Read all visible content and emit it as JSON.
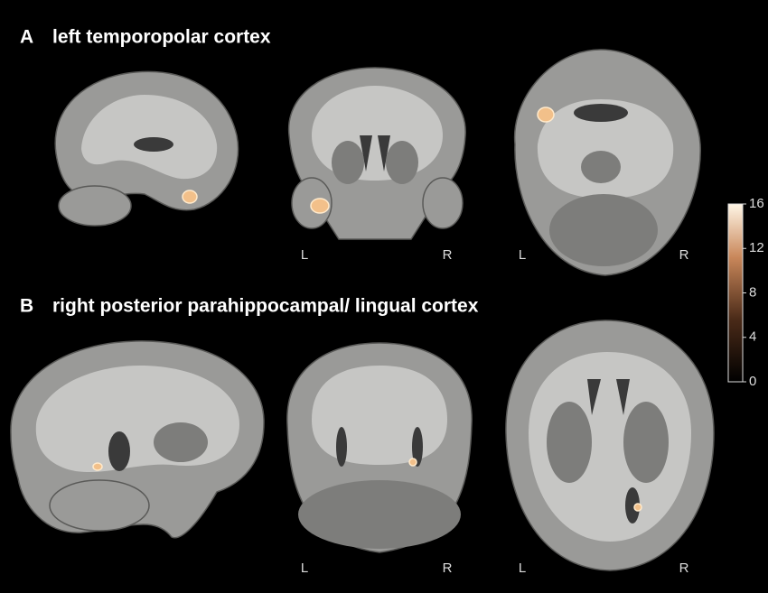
{
  "panels": [
    {
      "label": "A",
      "title": "left temporopolar cortex",
      "orientation_labels": [
        "L",
        "R",
        "L",
        "R"
      ]
    },
    {
      "label": "B",
      "title": "right posterior parahippocampal/ lingual cortex",
      "orientation_labels": [
        "L",
        "R",
        "L",
        "R"
      ]
    }
  ],
  "colorbar": {
    "range": [
      0,
      16
    ],
    "ticks": [
      16,
      12,
      8,
      4,
      0
    ]
  }
}
